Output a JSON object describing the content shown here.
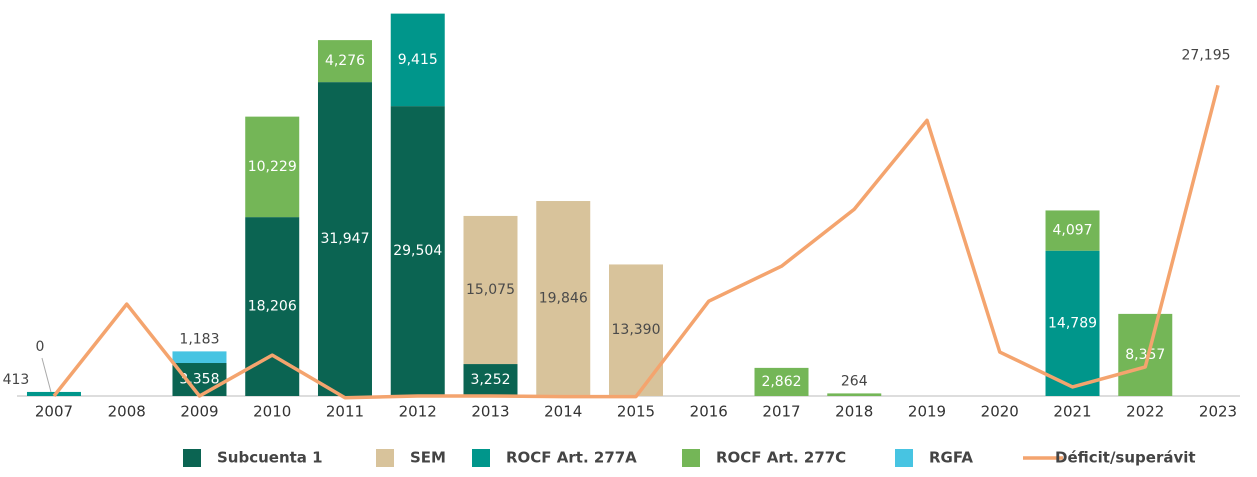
{
  "chart_data": {
    "type": "bar",
    "categories": [
      "2007",
      "2008",
      "2009",
      "2010",
      "2011",
      "2012",
      "2013",
      "2014",
      "2015",
      "2016",
      "2017",
      "2018",
      "2019",
      "2020",
      "2021",
      "2022",
      "2023"
    ],
    "ylim": [
      0,
      40000
    ],
    "y2lim": [
      0,
      34400
    ],
    "stacked": true,
    "series": [
      {
        "name": "Subcuenta 1",
        "color": "#0b6452",
        "label_color": "#ffffff",
        "values": [
          null,
          null,
          3358,
          18206,
          31947,
          29504,
          3252,
          null,
          null,
          null,
          null,
          null,
          null,
          null,
          null,
          null,
          null
        ],
        "value_labels": [
          null,
          null,
          "3,358",
          "18,206",
          "31,947",
          "29,504",
          "3,252",
          null,
          null,
          null,
          null,
          null,
          null,
          null,
          null,
          null,
          null
        ]
      },
      {
        "name": "SEM",
        "color": "#d8c39b",
        "label_color": "#4a4a4a",
        "values": [
          null,
          null,
          null,
          null,
          null,
          null,
          15075,
          19846,
          13390,
          null,
          null,
          null,
          null,
          null,
          null,
          null,
          null
        ],
        "value_labels": [
          null,
          null,
          null,
          null,
          null,
          null,
          "15,075",
          "19,846",
          "13,390",
          null,
          null,
          null,
          null,
          null,
          null,
          null,
          null
        ]
      },
      {
        "name": "ROCF Art. 277A",
        "color": "#00968b",
        "label_color": "#ffffff",
        "values": [
          413,
          null,
          null,
          null,
          null,
          9415,
          null,
          null,
          null,
          null,
          null,
          null,
          null,
          null,
          14789,
          null,
          null
        ],
        "value_labels": [
          "413",
          null,
          null,
          null,
          null,
          "9,415",
          null,
          null,
          null,
          null,
          null,
          null,
          null,
          null,
          "14,789",
          null,
          null
        ]
      },
      {
        "name": "ROCF Art. 277C",
        "color": "#74b657",
        "label_color": "#ffffff",
        "values": [
          null,
          null,
          null,
          10229,
          4276,
          null,
          null,
          null,
          null,
          null,
          2862,
          264,
          null,
          null,
          4097,
          8357,
          null
        ],
        "value_labels": [
          null,
          null,
          null,
          "10,229",
          "4,276",
          null,
          null,
          null,
          null,
          null,
          "2,862",
          "264",
          null,
          null,
          "4,097",
          "8,357",
          null
        ]
      },
      {
        "name": "RGFA",
        "color": "#47c4e2",
        "label_color": "#ffffff",
        "values": [
          null,
          null,
          1183,
          null,
          null,
          null,
          null,
          null,
          null,
          null,
          null,
          null,
          null,
          null,
          null,
          null,
          null
        ],
        "value_labels": [
          null,
          null,
          "1,183",
          null,
          null,
          null,
          null,
          null,
          null,
          null,
          null,
          null,
          null,
          null,
          null,
          null,
          null
        ]
      },
      {
        "name": "Déficit/superávit",
        "type": "line",
        "axis": "y2",
        "color": "#f4a46e",
        "values": [
          0,
          8040,
          0,
          3580,
          -150,
          0,
          0,
          -50,
          -50,
          8300,
          11360,
          16350,
          24130,
          3850,
          790,
          2540,
          27195
        ],
        "value_labels": [
          "0",
          null,
          null,
          null,
          null,
          null,
          null,
          null,
          null,
          null,
          null,
          null,
          null,
          null,
          null,
          null,
          "27,195"
        ]
      }
    ]
  }
}
